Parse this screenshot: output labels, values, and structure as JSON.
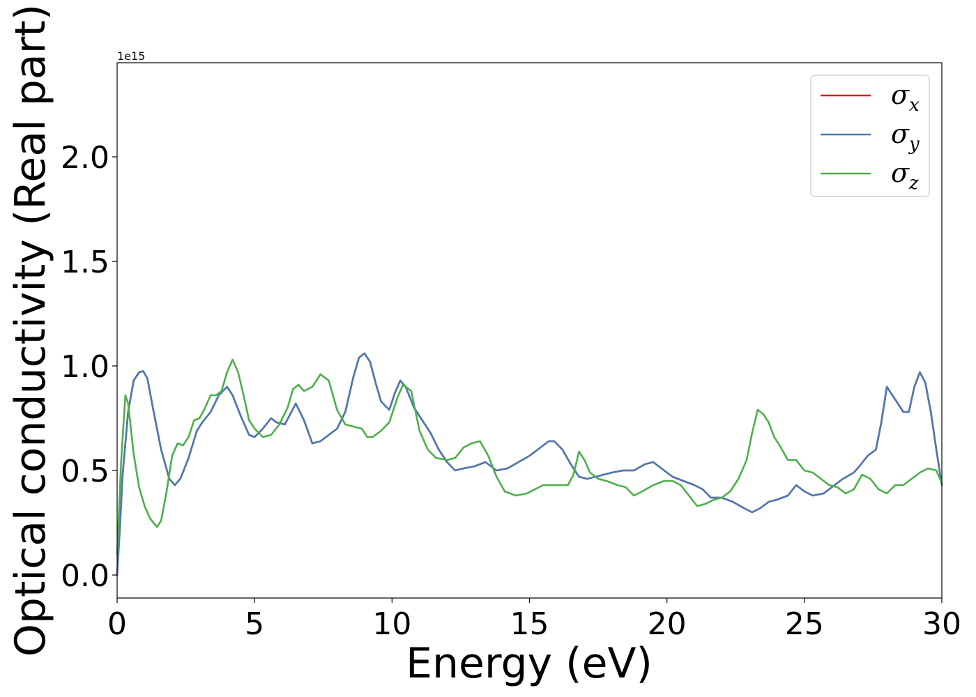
{
  "chart_data": {
    "type": "line",
    "xlabel": "Energy (eV)",
    "ylabel": "Optical conductivity (Real part)",
    "y_offset_text": "1e15",
    "xlim": [
      0,
      30
    ],
    "ylim": [
      -0.11,
      2.45
    ],
    "xticks": [
      0,
      5,
      10,
      15,
      20,
      25,
      30
    ],
    "xtick_labels": [
      "0",
      "5",
      "10",
      "15",
      "20",
      "25",
      "30"
    ],
    "yticks": [
      0.0,
      0.5,
      1.0,
      1.5,
      2.0
    ],
    "ytick_labels": [
      "0.0",
      "0.5",
      "1.0",
      "1.5",
      "2.0"
    ],
    "grid": false,
    "legend_position": "top-right",
    "series": [
      {
        "name": "σx",
        "legend_symbol": "σ",
        "legend_sub": "x",
        "color": "#e41a1c",
        "x": [
          0,
          0.1,
          0.2,
          0.4,
          0.6,
          0.8,
          0.95,
          1.1,
          1.3,
          1.6,
          1.9,
          2.1,
          2.3,
          2.6,
          2.9,
          3.1,
          3.4,
          3.7,
          4.0,
          4.2,
          4.5,
          4.8,
          5.0,
          5.3,
          5.6,
          5.8,
          6.1,
          6.3,
          6.5,
          6.8,
          7.1,
          7.4,
          7.7,
          8.0,
          8.3,
          8.6,
          8.8,
          9.0,
          9.2,
          9.4,
          9.6,
          9.9,
          10.1,
          10.3,
          10.5,
          10.8,
          11.1,
          11.4,
          11.7,
          12.0,
          12.3,
          12.6,
          13.0,
          13.4,
          13.8,
          14.2,
          14.6,
          15.0,
          15.4,
          15.7,
          15.9,
          16.2,
          16.5,
          16.8,
          17.1,
          17.4,
          17.7,
          18.0,
          18.4,
          18.8,
          19.2,
          19.5,
          19.8,
          20.2,
          20.6,
          21.0,
          21.3,
          21.6,
          22.0,
          22.4,
          22.8,
          23.1,
          23.4,
          23.7,
          24.0,
          24.4,
          24.7,
          25.0,
          25.3,
          25.7,
          26.0,
          26.4,
          26.8,
          27.0,
          27.3,
          27.6,
          27.8,
          28.0,
          28.3,
          28.6,
          28.8,
          29.0,
          29.2,
          29.4,
          29.6,
          29.8,
          30.0
        ],
        "values": [
          0.0,
          0.22,
          0.48,
          0.78,
          0.93,
          0.97,
          0.975,
          0.94,
          0.8,
          0.6,
          0.46,
          0.43,
          0.46,
          0.56,
          0.69,
          0.73,
          0.78,
          0.86,
          0.9,
          0.86,
          0.76,
          0.67,
          0.66,
          0.7,
          0.75,
          0.73,
          0.72,
          0.77,
          0.82,
          0.74,
          0.63,
          0.64,
          0.67,
          0.7,
          0.78,
          0.95,
          1.04,
          1.06,
          1.02,
          0.92,
          0.83,
          0.79,
          0.87,
          0.93,
          0.9,
          0.8,
          0.74,
          0.68,
          0.6,
          0.54,
          0.5,
          0.51,
          0.52,
          0.54,
          0.5,
          0.51,
          0.54,
          0.57,
          0.61,
          0.64,
          0.64,
          0.6,
          0.53,
          0.47,
          0.46,
          0.47,
          0.48,
          0.49,
          0.5,
          0.5,
          0.53,
          0.54,
          0.51,
          0.47,
          0.45,
          0.43,
          0.41,
          0.37,
          0.37,
          0.35,
          0.32,
          0.3,
          0.32,
          0.35,
          0.36,
          0.38,
          0.43,
          0.4,
          0.38,
          0.39,
          0.42,
          0.46,
          0.49,
          0.52,
          0.57,
          0.6,
          0.73,
          0.9,
          0.84,
          0.78,
          0.78,
          0.9,
          0.97,
          0.92,
          0.78,
          0.6,
          0.43
        ]
      },
      {
        "name": "σy",
        "legend_symbol": "σ",
        "legend_sub": "y",
        "color": "#4a7bb5",
        "x": [
          0,
          0.1,
          0.2,
          0.4,
          0.6,
          0.8,
          0.95,
          1.1,
          1.3,
          1.6,
          1.9,
          2.1,
          2.3,
          2.6,
          2.9,
          3.1,
          3.4,
          3.7,
          4.0,
          4.2,
          4.5,
          4.8,
          5.0,
          5.3,
          5.6,
          5.8,
          6.1,
          6.3,
          6.5,
          6.8,
          7.1,
          7.4,
          7.7,
          8.0,
          8.3,
          8.6,
          8.8,
          9.0,
          9.2,
          9.4,
          9.6,
          9.9,
          10.1,
          10.3,
          10.5,
          10.8,
          11.1,
          11.4,
          11.7,
          12.0,
          12.3,
          12.6,
          13.0,
          13.4,
          13.8,
          14.2,
          14.6,
          15.0,
          15.4,
          15.7,
          15.9,
          16.2,
          16.5,
          16.8,
          17.1,
          17.4,
          17.7,
          18.0,
          18.4,
          18.8,
          19.2,
          19.5,
          19.8,
          20.2,
          20.6,
          21.0,
          21.3,
          21.6,
          22.0,
          22.4,
          22.8,
          23.1,
          23.4,
          23.7,
          24.0,
          24.4,
          24.7,
          25.0,
          25.3,
          25.7,
          26.0,
          26.4,
          26.8,
          27.0,
          27.3,
          27.6,
          27.8,
          28.0,
          28.3,
          28.6,
          28.8,
          29.0,
          29.2,
          29.4,
          29.6,
          29.8,
          30.0
        ],
        "values": [
          0.0,
          0.22,
          0.48,
          0.78,
          0.93,
          0.97,
          0.975,
          0.94,
          0.8,
          0.6,
          0.46,
          0.43,
          0.46,
          0.56,
          0.69,
          0.73,
          0.78,
          0.86,
          0.9,
          0.86,
          0.76,
          0.67,
          0.66,
          0.7,
          0.75,
          0.73,
          0.72,
          0.77,
          0.82,
          0.74,
          0.63,
          0.64,
          0.67,
          0.7,
          0.78,
          0.95,
          1.04,
          1.06,
          1.02,
          0.92,
          0.83,
          0.79,
          0.87,
          0.93,
          0.9,
          0.8,
          0.74,
          0.68,
          0.6,
          0.54,
          0.5,
          0.51,
          0.52,
          0.54,
          0.5,
          0.51,
          0.54,
          0.57,
          0.61,
          0.64,
          0.64,
          0.6,
          0.53,
          0.47,
          0.46,
          0.47,
          0.48,
          0.49,
          0.5,
          0.5,
          0.53,
          0.54,
          0.51,
          0.47,
          0.45,
          0.43,
          0.41,
          0.37,
          0.37,
          0.35,
          0.32,
          0.3,
          0.32,
          0.35,
          0.36,
          0.38,
          0.43,
          0.4,
          0.38,
          0.39,
          0.42,
          0.46,
          0.49,
          0.52,
          0.57,
          0.6,
          0.73,
          0.9,
          0.84,
          0.78,
          0.78,
          0.9,
          0.97,
          0.92,
          0.78,
          0.6,
          0.43
        ]
      },
      {
        "name": "σz",
        "legend_symbol": "σ",
        "legend_sub": "z",
        "color": "#4daf4a",
        "x": [
          0,
          0.15,
          0.3,
          0.4,
          0.6,
          0.8,
          1.0,
          1.2,
          1.45,
          1.6,
          1.8,
          2.0,
          2.2,
          2.4,
          2.6,
          2.8,
          3.0,
          3.2,
          3.4,
          3.6,
          3.8,
          4.0,
          4.2,
          4.4,
          4.6,
          4.8,
          5.0,
          5.3,
          5.6,
          5.9,
          6.2,
          6.4,
          6.6,
          6.8,
          7.1,
          7.4,
          7.7,
          8.0,
          8.3,
          8.6,
          8.9,
          9.1,
          9.3,
          9.6,
          9.9,
          10.2,
          10.4,
          10.7,
          11.0,
          11.3,
          11.6,
          12.0,
          12.3,
          12.6,
          12.9,
          13.2,
          13.5,
          13.8,
          14.1,
          14.5,
          14.9,
          15.2,
          15.5,
          15.8,
          16.1,
          16.4,
          16.6,
          16.8,
          17.0,
          17.2,
          17.5,
          17.8,
          18.2,
          18.5,
          18.8,
          19.1,
          19.5,
          19.9,
          20.2,
          20.5,
          20.8,
          21.1,
          21.4,
          21.7,
          22.0,
          22.3,
          22.6,
          22.9,
          23.1,
          23.3,
          23.5,
          23.7,
          23.9,
          24.1,
          24.4,
          24.7,
          25.0,
          25.3,
          25.6,
          25.9,
          26.2,
          26.5,
          26.8,
          27.1,
          27.4,
          27.7,
          28.0,
          28.3,
          28.6,
          28.9,
          29.2,
          29.5,
          29.8,
          30.0
        ],
        "values": [
          0.1,
          0.55,
          0.86,
          0.82,
          0.58,
          0.42,
          0.33,
          0.27,
          0.23,
          0.26,
          0.4,
          0.57,
          0.63,
          0.62,
          0.66,
          0.74,
          0.75,
          0.8,
          0.86,
          0.86,
          0.88,
          0.97,
          1.03,
          0.97,
          0.86,
          0.74,
          0.7,
          0.66,
          0.67,
          0.72,
          0.8,
          0.89,
          0.91,
          0.88,
          0.9,
          0.96,
          0.93,
          0.79,
          0.72,
          0.71,
          0.7,
          0.66,
          0.66,
          0.69,
          0.73,
          0.85,
          0.91,
          0.88,
          0.69,
          0.6,
          0.56,
          0.55,
          0.56,
          0.61,
          0.63,
          0.64,
          0.57,
          0.47,
          0.4,
          0.38,
          0.39,
          0.41,
          0.43,
          0.43,
          0.43,
          0.43,
          0.48,
          0.59,
          0.55,
          0.49,
          0.46,
          0.45,
          0.43,
          0.42,
          0.38,
          0.4,
          0.43,
          0.45,
          0.45,
          0.43,
          0.38,
          0.33,
          0.34,
          0.36,
          0.37,
          0.4,
          0.46,
          0.55,
          0.68,
          0.79,
          0.77,
          0.73,
          0.66,
          0.62,
          0.55,
          0.55,
          0.5,
          0.49,
          0.46,
          0.43,
          0.42,
          0.39,
          0.41,
          0.48,
          0.46,
          0.41,
          0.39,
          0.43,
          0.43,
          0.46,
          0.49,
          0.51,
          0.5,
          0.44
        ]
      }
    ]
  }
}
